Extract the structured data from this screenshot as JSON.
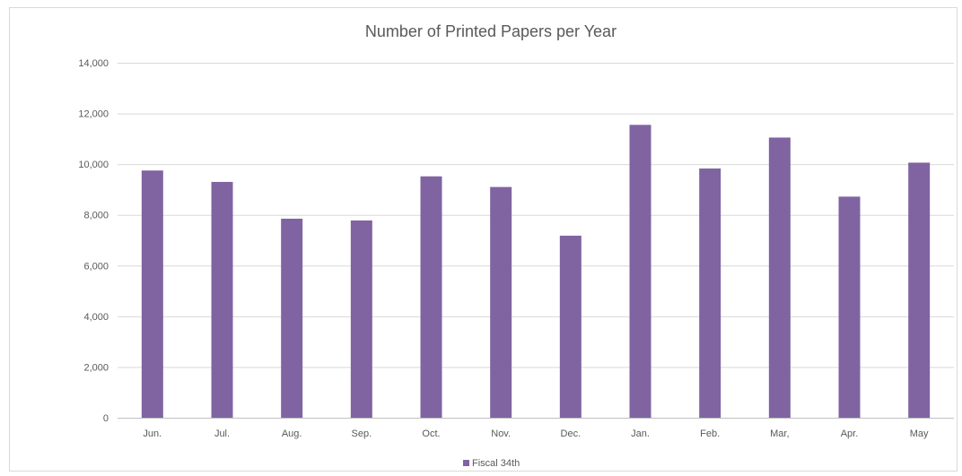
{
  "chart_data": {
    "type": "bar",
    "title": "Number of Printed Papers per Year",
    "xlabel": "",
    "ylabel": "",
    "categories": [
      "Jun.",
      "Jul.",
      "Aug.",
      "Sep.",
      "Oct.",
      "Nov.",
      "Dec.",
      "Jan.",
      "Feb.",
      "Mar,",
      "Apr.",
      "May"
    ],
    "series": [
      {
        "name": "Fiscal 34th",
        "color": "#8064a2",
        "values": [
          9750,
          9300,
          7850,
          7780,
          9520,
          9100,
          7180,
          11550,
          9830,
          11050,
          8720,
          10060
        ]
      }
    ],
    "ylim": [
      0,
      14000
    ],
    "yticks": [
      0,
      2000,
      4000,
      6000,
      8000,
      10000,
      12000,
      14000
    ],
    "ytick_labels": [
      "0",
      "2,000",
      "4,000",
      "6,000",
      "8,000",
      "10,000",
      "12,000",
      "14,000"
    ],
    "grid": true,
    "legend_position": "bottom"
  }
}
